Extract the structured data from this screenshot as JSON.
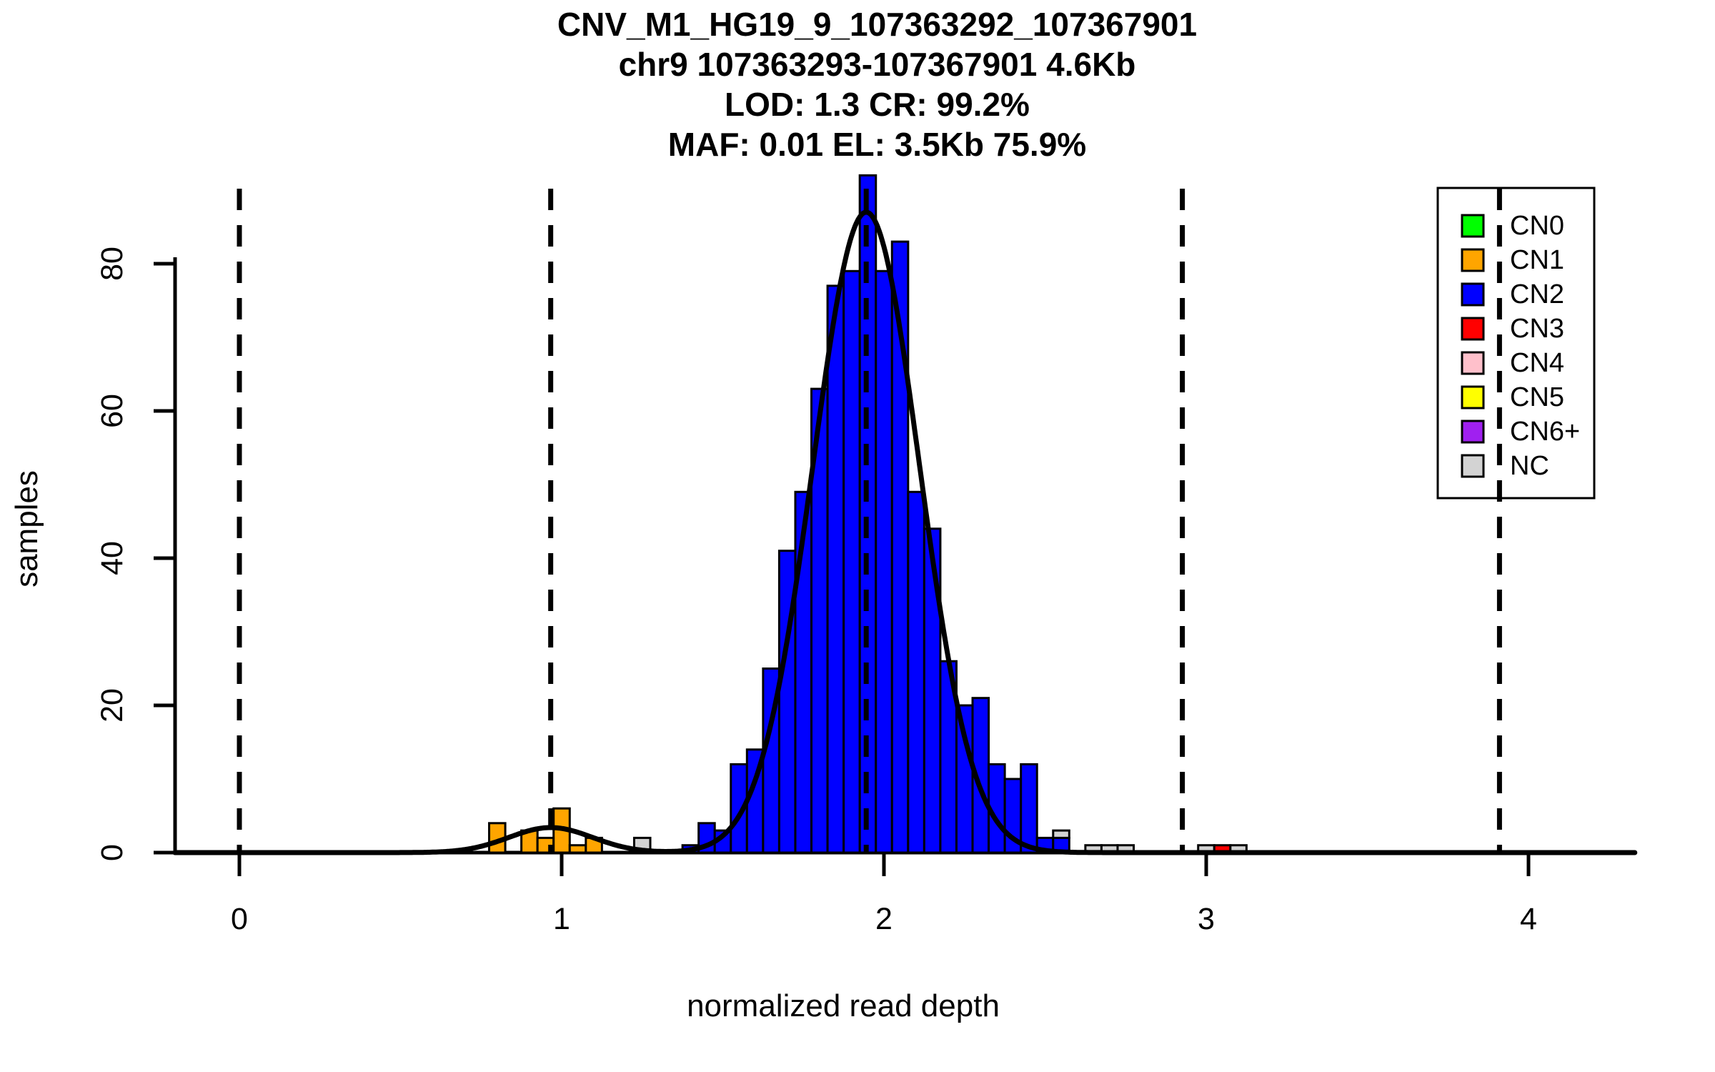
{
  "figure": {
    "title_lines": [
      "CNV_M1_HG19_9_107363292_107367901",
      "chr9 107363293-107367901 4.6Kb",
      "LOD: 1.3 CR: 99.2%",
      "MAF: 0.01 EL: 3.5Kb 75.9%"
    ]
  },
  "axes": {
    "x_label": "normalized read depth",
    "y_label": "samples",
    "x_ticks": [
      0,
      1,
      2,
      3,
      4
    ],
    "y_ticks": [
      0,
      20,
      40,
      60,
      80
    ]
  },
  "legend": {
    "items": [
      {
        "label": "CN0",
        "color": "#00FF00"
      },
      {
        "label": "CN1",
        "color": "#FFA500"
      },
      {
        "label": "CN2",
        "color": "#0000FF"
      },
      {
        "label": "CN3",
        "color": "#FF0000"
      },
      {
        "label": "CN4",
        "color": "#FFC0CB"
      },
      {
        "label": "CN5",
        "color": "#FFFF00"
      },
      {
        "label": "CN6+",
        "color": "#A020F0"
      },
      {
        "label": "NC",
        "color": "#D3D3D3"
      }
    ]
  },
  "chart_data": {
    "type": "bar",
    "subtype": "stacked-histogram-with-density",
    "title": "CNV_M1_HG19_9_107363292_107367901 / chr9 107363293-107367901 4.6Kb / LOD: 1.3 CR: 99.2% / MAF: 0.01 EL: 3.5Kb 75.9%",
    "xlabel": "normalized read depth",
    "ylabel": "samples",
    "xlim": [
      -0.2,
      4.33
    ],
    "ylim": [
      0,
      92.5
    ],
    "grid": false,
    "legend_position": "top-right",
    "bin_width": 0.05,
    "class_colors": {
      "CN0": "#00FF00",
      "CN1": "#FFA500",
      "CN2": "#0000FF",
      "CN3": "#FF0000",
      "CN4": "#FFC0CB",
      "CN5": "#FFFF00",
      "CN6+": "#A020F0",
      "NC": "#D3D3D3"
    },
    "bins": [
      {
        "x0": 0.775,
        "segments": [
          {
            "cn": "CN1",
            "n": 4
          }
        ]
      },
      {
        "x0": 0.875,
        "segments": [
          {
            "cn": "CN1",
            "n": 3
          }
        ]
      },
      {
        "x0": 0.925,
        "segments": [
          {
            "cn": "CN1",
            "n": 2
          }
        ]
      },
      {
        "x0": 0.975,
        "segments": [
          {
            "cn": "CN1",
            "n": 6
          }
        ]
      },
      {
        "x0": 1.025,
        "segments": [
          {
            "cn": "CN1",
            "n": 1
          }
        ]
      },
      {
        "x0": 1.075,
        "segments": [
          {
            "cn": "CN1",
            "n": 2
          }
        ]
      },
      {
        "x0": 1.225,
        "segments": [
          {
            "cn": "NC",
            "n": 2
          }
        ]
      },
      {
        "x0": 1.375,
        "segments": [
          {
            "cn": "CN2",
            "n": 1
          }
        ]
      },
      {
        "x0": 1.425,
        "segments": [
          {
            "cn": "CN2",
            "n": 4
          }
        ]
      },
      {
        "x0": 1.475,
        "segments": [
          {
            "cn": "CN2",
            "n": 3
          }
        ]
      },
      {
        "x0": 1.525,
        "segments": [
          {
            "cn": "CN2",
            "n": 12
          }
        ]
      },
      {
        "x0": 1.575,
        "segments": [
          {
            "cn": "CN2",
            "n": 14
          }
        ]
      },
      {
        "x0": 1.625,
        "segments": [
          {
            "cn": "CN2",
            "n": 25
          }
        ]
      },
      {
        "x0": 1.675,
        "segments": [
          {
            "cn": "CN2",
            "n": 41
          }
        ]
      },
      {
        "x0": 1.725,
        "segments": [
          {
            "cn": "CN2",
            "n": 49
          }
        ]
      },
      {
        "x0": 1.775,
        "segments": [
          {
            "cn": "CN2",
            "n": 63
          }
        ]
      },
      {
        "x0": 1.825,
        "segments": [
          {
            "cn": "CN2",
            "n": 77
          }
        ]
      },
      {
        "x0": 1.875,
        "segments": [
          {
            "cn": "CN2",
            "n": 79
          }
        ]
      },
      {
        "x0": 1.925,
        "segments": [
          {
            "cn": "CN2",
            "n": 92
          }
        ]
      },
      {
        "x0": 1.975,
        "segments": [
          {
            "cn": "CN2",
            "n": 79
          }
        ]
      },
      {
        "x0": 2.025,
        "segments": [
          {
            "cn": "CN2",
            "n": 83
          }
        ]
      },
      {
        "x0": 2.075,
        "segments": [
          {
            "cn": "CN2",
            "n": 49
          }
        ]
      },
      {
        "x0": 2.125,
        "segments": [
          {
            "cn": "CN2",
            "n": 44
          }
        ]
      },
      {
        "x0": 2.175,
        "segments": [
          {
            "cn": "CN2",
            "n": 26
          }
        ]
      },
      {
        "x0": 2.225,
        "segments": [
          {
            "cn": "CN2",
            "n": 20
          }
        ]
      },
      {
        "x0": 2.275,
        "segments": [
          {
            "cn": "CN2",
            "n": 21
          }
        ]
      },
      {
        "x0": 2.325,
        "segments": [
          {
            "cn": "CN2",
            "n": 12
          }
        ]
      },
      {
        "x0": 2.375,
        "segments": [
          {
            "cn": "CN2",
            "n": 10
          }
        ]
      },
      {
        "x0": 2.425,
        "segments": [
          {
            "cn": "CN2",
            "n": 12
          }
        ]
      },
      {
        "x0": 2.475,
        "segments": [
          {
            "cn": "CN2",
            "n": 2
          }
        ]
      },
      {
        "x0": 2.525,
        "segments": [
          {
            "cn": "CN2",
            "n": 2
          },
          {
            "cn": "NC",
            "n": 1
          }
        ]
      },
      {
        "x0": 2.625,
        "segments": [
          {
            "cn": "NC",
            "n": 1
          }
        ]
      },
      {
        "x0": 2.675,
        "segments": [
          {
            "cn": "NC",
            "n": 1
          }
        ]
      },
      {
        "x0": 2.725,
        "segments": [
          {
            "cn": "NC",
            "n": 1
          }
        ]
      },
      {
        "x0": 2.975,
        "segments": [
          {
            "cn": "NC",
            "n": 1
          }
        ]
      },
      {
        "x0": 3.025,
        "segments": [
          {
            "cn": "CN3",
            "n": 1
          }
        ]
      },
      {
        "x0": 3.075,
        "segments": [
          {
            "cn": "NC",
            "n": 1
          }
        ]
      }
    ],
    "dashed_cluster_means_x": [
      0.0,
      0.966,
      1.945,
      2.926,
      3.91
    ],
    "density_curve": {
      "color": "#000000",
      "components": [
        {
          "mu": 1.945,
          "sigma": 0.165,
          "amp": 87
        },
        {
          "mu": 0.966,
          "sigma": 0.13,
          "amp": 3.4
        }
      ]
    }
  }
}
